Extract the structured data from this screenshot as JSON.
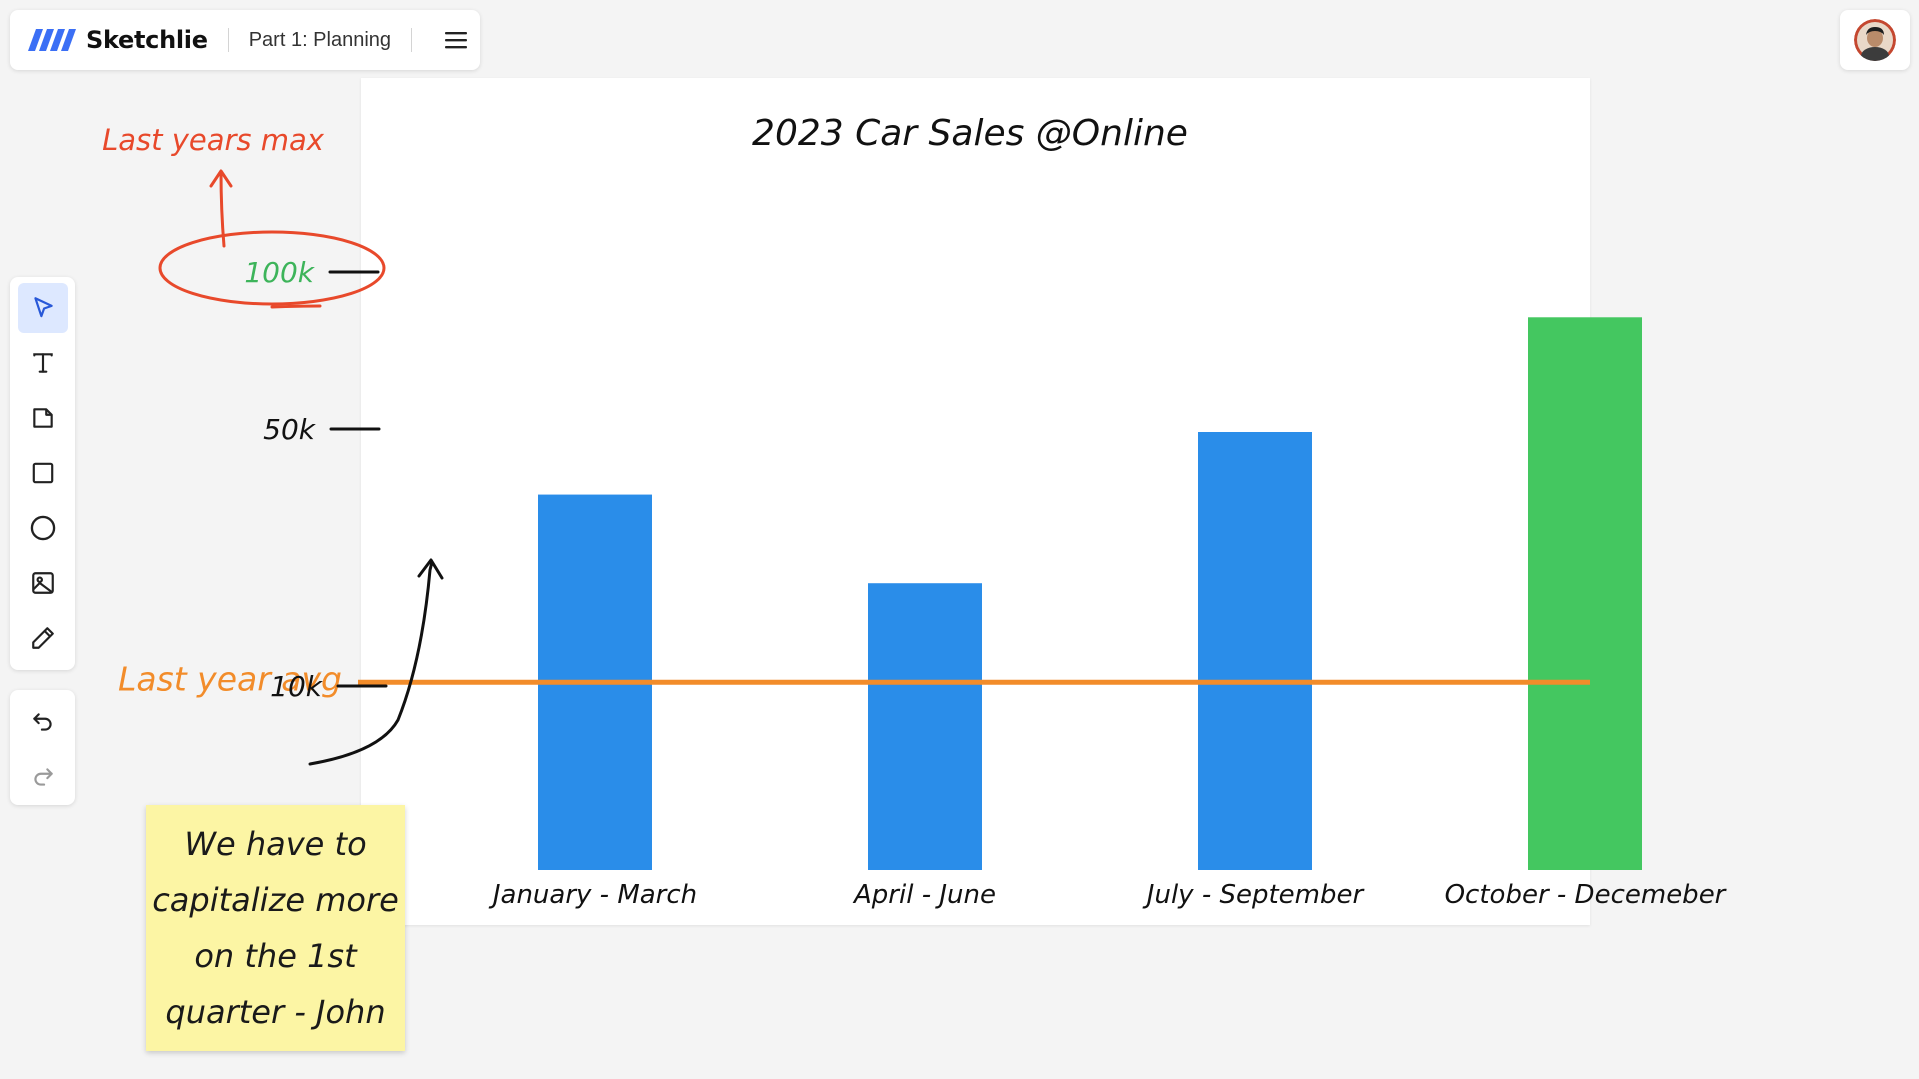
{
  "app": {
    "brand": "Sketchlie",
    "board_title": "Part 1: Planning"
  },
  "toolbar": {
    "tools": [
      {
        "name": "select",
        "icon": "cursor-icon",
        "active": true
      },
      {
        "name": "text",
        "icon": "text-icon",
        "active": false
      },
      {
        "name": "sticky-note",
        "icon": "sticky-note-icon",
        "active": false
      },
      {
        "name": "rectangle",
        "icon": "rectangle-icon",
        "active": false
      },
      {
        "name": "ellipse",
        "icon": "circle-icon",
        "active": false
      },
      {
        "name": "image",
        "icon": "image-icon",
        "active": false
      },
      {
        "name": "pen",
        "icon": "pencil-icon",
        "active": false
      }
    ],
    "history": [
      {
        "name": "undo",
        "icon": "undo-icon"
      },
      {
        "name": "redo",
        "icon": "redo-icon"
      }
    ]
  },
  "colors": {
    "bar_default": "#2a8de9",
    "bar_highlight": "#44c760",
    "avg_line": "#f28c2a",
    "annotation_red": "#e8492b",
    "annotation_green": "#3db45a",
    "logo_blue": "#3b6ff5"
  },
  "chart_data": {
    "type": "bar",
    "title": "2023 Car Sales @Online",
    "categories": [
      "January - March",
      "April - June",
      "July - September",
      "October - Decemeber"
    ],
    "values": [
      72000,
      55000,
      84000,
      106000
    ],
    "highlight_index": 3,
    "ylabel": "",
    "ylim": [
      0,
      140000
    ],
    "tick_labels": [
      "10k",
      "50k",
      "100k"
    ],
    "reference_line": {
      "label": "Last year avg",
      "value": 36000
    }
  },
  "annotations": {
    "max_label": "Last years max",
    "sticky_note": "We have to capitalize more on the 1st quarter - John"
  }
}
